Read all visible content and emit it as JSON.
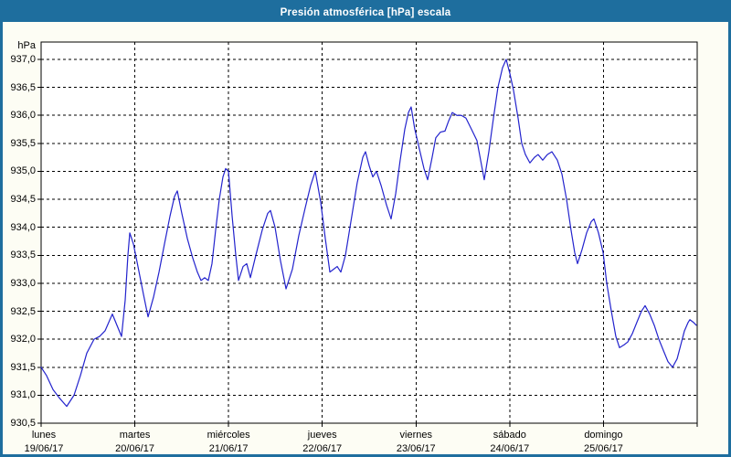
{
  "window": {
    "title": "Presión atmosférica [hPa] escala"
  },
  "colors": {
    "frame": "#1e6e9e",
    "header_bg": "#1e6e9e",
    "header_text": "#ffffff",
    "content_bg": "#fdfdf4",
    "plot_bg": "#ffffff",
    "plot_border": "#000000",
    "grid": "#000000",
    "line": "#2323cd",
    "label_text": "#000000"
  },
  "chart_data": {
    "type": "line",
    "title": "Presión atmosférica [hPa] escala",
    "y_unit_label": "hPa",
    "ylabel_decimal": "comma",
    "ylim": [
      930.5,
      937.31
    ],
    "ytick_step": 0.5,
    "yticks": [
      {
        "v": 937.0,
        "label": "937,0"
      },
      {
        "v": 936.5,
        "label": "936,5"
      },
      {
        "v": 936.0,
        "label": "936,0"
      },
      {
        "v": 935.5,
        "label": "935,5"
      },
      {
        "v": 935.0,
        "label": "935,0"
      },
      {
        "v": 934.5,
        "label": "934,5"
      },
      {
        "v": 934.0,
        "label": "934,0"
      },
      {
        "v": 933.5,
        "label": "933,5"
      },
      {
        "v": 933.0,
        "label": "933,0"
      },
      {
        "v": 932.5,
        "label": "932,5"
      },
      {
        "v": 932.0,
        "label": "932,0"
      },
      {
        "v": 931.5,
        "label": "931,5"
      },
      {
        "v": 931.0,
        "label": "931,0"
      },
      {
        "v": 930.5,
        "label": "930,5"
      }
    ],
    "x_range_days": [
      0,
      7
    ],
    "x_days": [
      {
        "name": "lunes",
        "date": "19/06/17"
      },
      {
        "name": "martes",
        "date": "20/06/17"
      },
      {
        "name": "miércoles",
        "date": "21/06/17"
      },
      {
        "name": "jueves",
        "date": "22/06/17"
      },
      {
        "name": "viernes",
        "date": "23/06/17"
      },
      {
        "name": "sábado",
        "date": "24/06/17"
      },
      {
        "name": "domingo",
        "date": "25/06/17"
      }
    ],
    "grid": {
      "horizontal": "dashed",
      "vertical_at_midnights": "dashed"
    },
    "legend": "none",
    "series": [
      {
        "name": "Presión atmosférica",
        "unit": "hPa",
        "color": "#2323cd",
        "points": [
          [
            0.0,
            931.5
          ],
          [
            0.058,
            931.35
          ],
          [
            0.127,
            931.1
          ],
          [
            0.195,
            930.95
          ],
          [
            0.273,
            930.8
          ],
          [
            0.351,
            931.0
          ],
          [
            0.419,
            931.35
          ],
          [
            0.487,
            931.75
          ],
          [
            0.565,
            932.0
          ],
          [
            0.624,
            932.05
          ],
          [
            0.682,
            932.15
          ],
          [
            0.76,
            932.45
          ],
          [
            0.809,
            932.25
          ],
          [
            0.858,
            932.05
          ],
          [
            0.897,
            932.7
          ],
          [
            0.926,
            933.5
          ],
          [
            0.946,
            933.9
          ],
          [
            0.985,
            933.7
          ],
          [
            1.033,
            933.3
          ],
          [
            1.092,
            932.8
          ],
          [
            1.141,
            932.4
          ],
          [
            1.199,
            932.75
          ],
          [
            1.258,
            933.2
          ],
          [
            1.316,
            933.7
          ],
          [
            1.375,
            934.2
          ],
          [
            1.423,
            934.55
          ],
          [
            1.453,
            934.65
          ],
          [
            1.501,
            934.25
          ],
          [
            1.56,
            933.8
          ],
          [
            1.618,
            933.45
          ],
          [
            1.667,
            933.2
          ],
          [
            1.706,
            933.05
          ],
          [
            1.745,
            933.1
          ],
          [
            1.784,
            933.05
          ],
          [
            1.823,
            933.35
          ],
          [
            1.862,
            933.95
          ],
          [
            1.901,
            934.5
          ],
          [
            1.94,
            934.9
          ],
          [
            1.969,
            935.05
          ],
          [
            1.999,
            935.0
          ],
          [
            2.038,
            934.2
          ],
          [
            2.077,
            933.5
          ],
          [
            2.106,
            933.05
          ],
          [
            2.155,
            933.3
          ],
          [
            2.194,
            933.35
          ],
          [
            2.233,
            933.1
          ],
          [
            2.291,
            933.5
          ],
          [
            2.359,
            933.95
          ],
          [
            2.418,
            934.25
          ],
          [
            2.447,
            934.3
          ],
          [
            2.496,
            934.0
          ],
          [
            2.554,
            933.4
          ],
          [
            2.613,
            932.9
          ],
          [
            2.681,
            933.25
          ],
          [
            2.749,
            933.85
          ],
          [
            2.818,
            934.35
          ],
          [
            2.876,
            934.75
          ],
          [
            2.925,
            935.0
          ],
          [
            2.983,
            934.45
          ],
          [
            3.032,
            933.8
          ],
          [
            3.081,
            933.2
          ],
          [
            3.12,
            933.25
          ],
          [
            3.159,
            933.3
          ],
          [
            3.198,
            933.2
          ],
          [
            3.247,
            933.5
          ],
          [
            3.305,
            934.1
          ],
          [
            3.373,
            934.8
          ],
          [
            3.432,
            935.25
          ],
          [
            3.461,
            935.35
          ],
          [
            3.5,
            935.1
          ],
          [
            3.539,
            934.9
          ],
          [
            3.578,
            935.0
          ],
          [
            3.627,
            934.75
          ],
          [
            3.685,
            934.4
          ],
          [
            3.734,
            934.15
          ],
          [
            3.783,
            934.6
          ],
          [
            3.831,
            935.2
          ],
          [
            3.88,
            935.75
          ],
          [
            3.919,
            936.05
          ],
          [
            3.948,
            936.15
          ],
          [
            3.987,
            935.75
          ],
          [
            4.036,
            935.4
          ],
          [
            4.085,
            935.05
          ],
          [
            4.124,
            934.85
          ],
          [
            4.172,
            935.25
          ],
          [
            4.211,
            935.6
          ],
          [
            4.26,
            935.7
          ],
          [
            4.309,
            935.72
          ],
          [
            4.348,
            935.9
          ],
          [
            4.387,
            936.05
          ],
          [
            4.436,
            936.0
          ],
          [
            4.484,
            936.0
          ],
          [
            4.533,
            935.95
          ],
          [
            4.592,
            935.75
          ],
          [
            4.65,
            935.55
          ],
          [
            4.689,
            935.2
          ],
          [
            4.728,
            934.85
          ],
          [
            4.777,
            935.35
          ],
          [
            4.826,
            935.95
          ],
          [
            4.874,
            936.5
          ],
          [
            4.923,
            936.85
          ],
          [
            4.962,
            937.0
          ],
          [
            5.001,
            936.75
          ],
          [
            5.04,
            936.45
          ],
          [
            5.089,
            935.95
          ],
          [
            5.128,
            935.5
          ],
          [
            5.167,
            935.3
          ],
          [
            5.215,
            935.15
          ],
          [
            5.264,
            935.25
          ],
          [
            5.303,
            935.3
          ],
          [
            5.352,
            935.2
          ],
          [
            5.401,
            935.3
          ],
          [
            5.45,
            935.35
          ],
          [
            5.508,
            935.2
          ],
          [
            5.557,
            934.95
          ],
          [
            5.606,
            934.5
          ],
          [
            5.654,
            933.95
          ],
          [
            5.693,
            933.55
          ],
          [
            5.723,
            933.35
          ],
          [
            5.771,
            933.6
          ],
          [
            5.82,
            933.9
          ],
          [
            5.869,
            934.1
          ],
          [
            5.898,
            934.15
          ],
          [
            5.947,
            933.9
          ],
          [
            5.996,
            933.55
          ],
          [
            6.035,
            933.0
          ],
          [
            6.084,
            932.5
          ],
          [
            6.132,
            932.05
          ],
          [
            6.171,
            931.85
          ],
          [
            6.22,
            931.9
          ],
          [
            6.259,
            931.95
          ],
          [
            6.308,
            932.1
          ],
          [
            6.356,
            932.3
          ],
          [
            6.405,
            932.5
          ],
          [
            6.444,
            932.6
          ],
          [
            6.493,
            932.45
          ],
          [
            6.542,
            932.25
          ],
          [
            6.591,
            932.0
          ],
          [
            6.639,
            931.8
          ],
          [
            6.688,
            931.6
          ],
          [
            6.737,
            931.5
          ],
          [
            6.786,
            931.65
          ],
          [
            6.825,
            931.9
          ],
          [
            6.864,
            932.15
          ],
          [
            6.903,
            932.3
          ],
          [
            6.922,
            932.35
          ],
          [
            6.961,
            932.3
          ],
          [
            6.99,
            932.25
          ]
        ]
      }
    ]
  }
}
